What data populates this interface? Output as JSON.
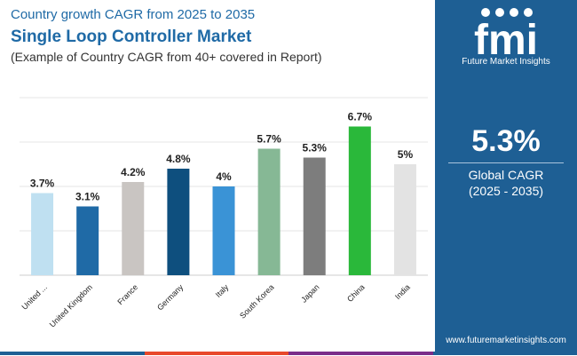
{
  "header": {
    "subtitle_top": "Country growth CAGR from 2025 to 2035",
    "title": "Single Loop Controller Market",
    "caption": "(Example of Country CAGR from 40+ covered in Report)"
  },
  "side_panel": {
    "logo_letters": "fmi",
    "logo_text": "Future Market Insights",
    "cagr_value": "5.3%",
    "cagr_label": "Global CAGR",
    "cagr_range": "(2025 - 2035)",
    "url": "www.futuremarketinsights.com"
  },
  "colors": {
    "brand_blue": "#1e5f94",
    "strip": [
      "#1e5f94",
      "#e8492b",
      "#7a2d8a",
      "#1e5f94"
    ]
  },
  "chart_data": {
    "type": "bar",
    "title": "Single Loop Controller Market",
    "xlabel": "",
    "ylabel": "",
    "ylim": [
      0,
      8
    ],
    "grid": true,
    "categories": [
      "United ...",
      "United Kingdom",
      "France",
      "Germany",
      "Italy",
      "South Korea",
      "Japan",
      "China",
      "India"
    ],
    "values": [
      3.7,
      3.1,
      4.2,
      4.8,
      4.0,
      5.7,
      5.3,
      6.7,
      5.0
    ],
    "labels": [
      "3.7%",
      "3.1%",
      "4.2%",
      "4.8%",
      "4%",
      "5.7%",
      "5.3%",
      "6.7%",
      "5%"
    ],
    "bar_colors": [
      "#bfe0f1",
      "#1f6aa6",
      "#c9c5c2",
      "#0e4f7e",
      "#3a93d6",
      "#86b895",
      "#7d7d7d",
      "#2ab83a",
      "#e3e3e3"
    ]
  }
}
